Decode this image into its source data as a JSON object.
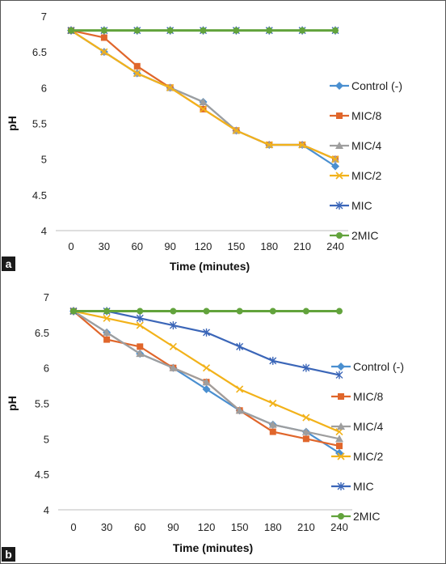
{
  "series_styles": [
    {
      "name": "Control (-)",
      "color": "#4a8fd0",
      "marker": "diamond"
    },
    {
      "name": "MIC/8",
      "color": "#e0662b",
      "marker": "square"
    },
    {
      "name": "MIC/4",
      "color": "#9e9e9e",
      "marker": "triangle"
    },
    {
      "name": "MIC/2",
      "color": "#f2b21a",
      "marker": "x"
    },
    {
      "name": "MIC",
      "color": "#3b66b8",
      "marker": "star"
    },
    {
      "name": "2MIC",
      "color": "#62a33c",
      "marker": "circle"
    }
  ],
  "chart_data": [
    {
      "type": "line",
      "panel_label": "a",
      "xlabel": "Time (minutes)",
      "ylabel": "pH",
      "x": [
        0,
        30,
        60,
        90,
        120,
        150,
        180,
        210,
        240
      ],
      "ylim": [
        4,
        7
      ],
      "yticks": [
        "4",
        "4.5",
        "5",
        "5.5",
        "6",
        "6.5",
        "7"
      ],
      "grid": false,
      "legend": "right",
      "series": [
        {
          "name": "Control (-)",
          "values": [
            6.8,
            6.5,
            6.2,
            6.0,
            5.8,
            5.4,
            5.2,
            5.2,
            4.9
          ]
        },
        {
          "name": "MIC/8",
          "values": [
            6.8,
            6.7,
            6.3,
            6.0,
            5.7,
            5.4,
            5.2,
            5.2,
            5.0
          ]
        },
        {
          "name": "MIC/4",
          "values": [
            6.8,
            6.5,
            6.2,
            6.0,
            5.8,
            5.4,
            5.2,
            5.2,
            5.0
          ]
        },
        {
          "name": "MIC/2",
          "values": [
            6.8,
            6.5,
            6.2,
            6.0,
            5.7,
            5.4,
            5.2,
            5.2,
            5.0
          ]
        },
        {
          "name": "MIC",
          "values": [
            6.8,
            6.8,
            6.8,
            6.8,
            6.8,
            6.8,
            6.8,
            6.8,
            6.8
          ]
        },
        {
          "name": "2MIC",
          "values": [
            6.8,
            6.8,
            6.8,
            6.8,
            6.8,
            6.8,
            6.8,
            6.8,
            6.8
          ]
        }
      ]
    },
    {
      "type": "line",
      "panel_label": "b",
      "xlabel": "Time (minutes)",
      "ylabel": "pH",
      "x": [
        0,
        30,
        60,
        90,
        120,
        150,
        180,
        210,
        240
      ],
      "ylim": [
        4,
        7
      ],
      "yticks": [
        "4",
        "4.5",
        "5",
        "5.5",
        "6",
        "6.5",
        "7"
      ],
      "grid": false,
      "legend": "right",
      "series": [
        {
          "name": "Control (-)",
          "values": [
            6.8,
            6.5,
            6.2,
            6.0,
            5.7,
            5.4,
            5.2,
            5.1,
            4.8
          ]
        },
        {
          "name": "MIC/8",
          "values": [
            6.8,
            6.4,
            6.3,
            6.0,
            5.8,
            5.4,
            5.1,
            5.0,
            4.9
          ]
        },
        {
          "name": "MIC/4",
          "values": [
            6.8,
            6.5,
            6.2,
            6.0,
            5.8,
            5.4,
            5.2,
            5.1,
            5.0
          ]
        },
        {
          "name": "MIC/2",
          "values": [
            6.8,
            6.7,
            6.6,
            6.3,
            6.0,
            5.7,
            5.5,
            5.3,
            5.1
          ]
        },
        {
          "name": "MIC",
          "values": [
            6.8,
            6.8,
            6.7,
            6.6,
            6.5,
            6.3,
            6.1,
            6.0,
            5.9
          ]
        },
        {
          "name": "2MIC",
          "values": [
            6.8,
            6.8,
            6.8,
            6.8,
            6.8,
            6.8,
            6.8,
            6.8,
            6.8
          ]
        }
      ]
    }
  ]
}
